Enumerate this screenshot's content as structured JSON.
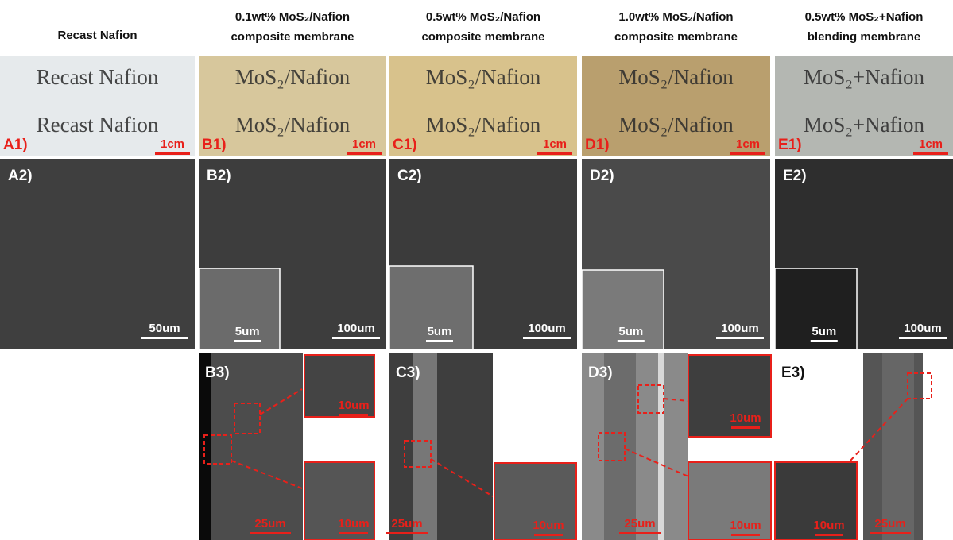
{
  "panels": [
    {
      "header": [
        "Recast Nafion"
      ],
      "photo": {
        "texts": [
          "Recast Nafion",
          "Recast Nafion"
        ],
        "label": "A1)",
        "scale": "1cm"
      },
      "sem": {
        "label": "A2)",
        "scale": "50um"
      }
    },
    {
      "header": [
        "0.1wt% MoS₂/Nafion",
        "composite membrane"
      ],
      "photo": {
        "texts": [
          "MoS₂/Nafion",
          "MoS₂/Nafion"
        ],
        "label": "B1)",
        "scale": "1cm"
      },
      "sem": {
        "label": "B2)",
        "inset_scale": "5um",
        "scale": "100um"
      },
      "cross": {
        "label": "B3)",
        "scales": [
          "10um",
          "10um",
          "25um"
        ]
      }
    },
    {
      "header": [
        "0.5wt% MoS₂/Nafion",
        "composite membrane"
      ],
      "photo": {
        "texts": [
          "MoS₂/Nafion",
          "MoS₂/Nafion"
        ],
        "label": "C1)",
        "scale": "1cm"
      },
      "sem": {
        "label": "C2)",
        "inset_scale": "5um",
        "scale": "100um"
      },
      "cross": {
        "label": "C3)",
        "scales": [
          "25um",
          "10um"
        ]
      }
    },
    {
      "header": [
        "1.0wt% MoS₂/Nafion",
        "composite membrane"
      ],
      "photo": {
        "texts": [
          "MoS₂/Nafion",
          "MoS₂/Nafion"
        ],
        "label": "D1)",
        "scale": "1cm"
      },
      "sem": {
        "label": "D2)",
        "inset_scale": "5um",
        "scale": "100um"
      },
      "cross": {
        "label": "D3)",
        "scales": [
          "10um",
          "10um",
          "25um"
        ]
      }
    },
    {
      "header": [
        "0.5wt% MoS₂+Nafion",
        "blending membrane"
      ],
      "photo": {
        "texts": [
          "MoS₂+Nafion",
          "MoS₂+Nafion"
        ],
        "label": "E1)",
        "scale": "1cm"
      },
      "sem": {
        "label": "E2)",
        "inset_scale": "5um",
        "scale": "100um"
      },
      "cross": {
        "label": "E3)",
        "scales": [
          "10um",
          "25um"
        ]
      }
    }
  ]
}
